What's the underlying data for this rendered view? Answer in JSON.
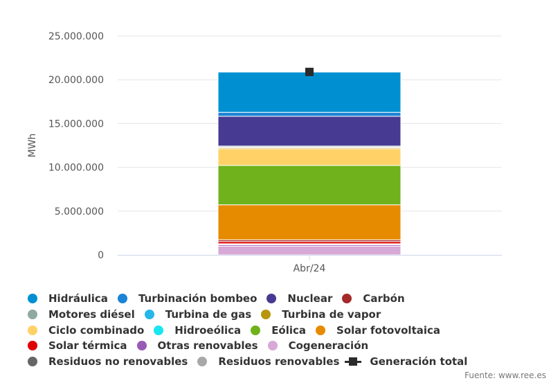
{
  "chart_data": {
    "type": "bar",
    "stacked": true,
    "categories": [
      "Abr/24"
    ],
    "ylabel": "MWh",
    "ylim": [
      0,
      25000000
    ],
    "yticks": [
      "0",
      "5.000.000",
      "10.000.000",
      "15.000.000",
      "20.000.000",
      "25.000.000"
    ],
    "grid": true,
    "legend_position": "bottom",
    "series": [
      {
        "name": "Cogeneración",
        "color": "#d8a8d6",
        "values": [
          1000000
        ]
      },
      {
        "name": "Otras renovables",
        "color": "#9b59b6",
        "values": [
          150000
        ]
      },
      {
        "name": "Residuos no renovables",
        "color": "#666666",
        "values": [
          60000
        ]
      },
      {
        "name": "Residuos renovables",
        "color": "#a8a8a8",
        "values": [
          60000
        ]
      },
      {
        "name": "Solar térmica",
        "color": "#e00000",
        "values": [
          250000
        ]
      },
      {
        "name": "Carbón",
        "color": "#a52a2a",
        "values": [
          200000
        ]
      },
      {
        "name": "Solar fotovoltaica",
        "color": "#e68a00",
        "values": [
          4000000
        ]
      },
      {
        "name": "Eólica",
        "color": "#6fb21c",
        "values": [
          4500000
        ]
      },
      {
        "name": "Ciclo combinado",
        "color": "#ffd166",
        "values": [
          1900000
        ]
      },
      {
        "name": "Turbina de vapor",
        "color": "#b8960c",
        "values": [
          130000
        ]
      },
      {
        "name": "Turbina de gas",
        "color": "#27b6e8",
        "values": [
          60000
        ]
      },
      {
        "name": "Motores diésel",
        "color": "#8faa9e",
        "values": [
          120000
        ]
      },
      {
        "name": "Hidroeólica",
        "color": "#19e6f0",
        "values": [
          2000
        ]
      },
      {
        "name": "Nuclear",
        "color": "#473a92",
        "values": [
          3400000
        ]
      },
      {
        "name": "Turbinación bombeo",
        "color": "#1c84d4",
        "values": [
          450000
        ]
      },
      {
        "name": "Hidráulica",
        "color": "#0090d2",
        "values": [
          4600000
        ]
      }
    ],
    "total": {
      "name": "Generación total",
      "color": "#2b2b2b",
      "values": [
        20900000
      ]
    }
  },
  "legend": {
    "rows": [
      [
        {
          "label": "Hidráulica",
          "color": "#0090d2",
          "icon": "dot"
        },
        {
          "label": "Turbinación bombeo",
          "color": "#1c84d4",
          "icon": "dot"
        },
        {
          "label": "Nuclear",
          "color": "#473a92",
          "icon": "dot"
        },
        {
          "label": "Carbón",
          "color": "#a52a2a",
          "icon": "dot"
        }
      ],
      [
        {
          "label": "Motores diésel",
          "color": "#8faa9e",
          "icon": "dot"
        },
        {
          "label": "Turbina de gas",
          "color": "#27b6e8",
          "icon": "dot"
        },
        {
          "label": "Turbina de vapor",
          "color": "#b8960c",
          "icon": "dot"
        }
      ],
      [
        {
          "label": "Ciclo combinado",
          "color": "#ffd166",
          "icon": "dot"
        },
        {
          "label": "Hidroeólica",
          "color": "#19e6f0",
          "icon": "dot"
        },
        {
          "label": "Eólica",
          "color": "#6fb21c",
          "icon": "dot"
        },
        {
          "label": "Solar fotovoltaica",
          "color": "#e68a00",
          "icon": "dot"
        }
      ],
      [
        {
          "label": "Solar térmica",
          "color": "#e00000",
          "icon": "dot"
        },
        {
          "label": "Otras renovables",
          "color": "#9b59b6",
          "icon": "dot"
        },
        {
          "label": "Cogeneración",
          "color": "#d8a8d6",
          "icon": "dot"
        }
      ],
      [
        {
          "label": "Residuos no renovables",
          "color": "#666666",
          "icon": "dot"
        },
        {
          "label": "Residuos renovables",
          "color": "#a8a8a8",
          "icon": "dot"
        },
        {
          "label": "Generación total",
          "color": "#2b2b2b",
          "icon": "square"
        }
      ]
    ]
  },
  "source": "Fuente: www.ree.es"
}
